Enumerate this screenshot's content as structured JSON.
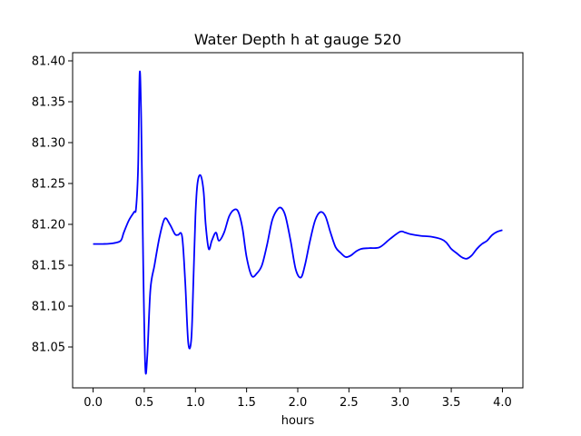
{
  "chart_data": {
    "type": "line",
    "title": "Water Depth h at gauge 520",
    "xlabel": "hours",
    "ylabel": "",
    "xlim": [
      -0.2,
      4.2
    ],
    "ylim": [
      81.0,
      81.41
    ],
    "xticks": [
      0.0,
      0.5,
      1.0,
      1.5,
      2.0,
      2.5,
      3.0,
      3.5,
      4.0
    ],
    "xtick_labels": [
      "0.0",
      "0.5",
      "1.0",
      "1.5",
      "2.0",
      "2.5",
      "3.0",
      "3.5",
      "4.0"
    ],
    "yticks": [
      81.05,
      81.1,
      81.15,
      81.2,
      81.25,
      81.3,
      81.35,
      81.4
    ],
    "ytick_labels": [
      "81.05",
      "81.10",
      "81.15",
      "81.20",
      "81.25",
      "81.30",
      "81.35",
      "81.40"
    ],
    "grid": false,
    "series": [
      {
        "color": "#0000ff",
        "x": [
          0.0,
          0.1,
          0.2,
          0.27,
          0.3,
          0.35,
          0.4,
          0.42,
          0.44,
          0.455,
          0.47,
          0.49,
          0.51,
          0.53,
          0.56,
          0.6,
          0.65,
          0.7,
          0.75,
          0.8,
          0.83,
          0.87,
          0.9,
          0.93,
          0.96,
          0.98,
          1.0,
          1.02,
          1.05,
          1.08,
          1.1,
          1.13,
          1.16,
          1.2,
          1.23,
          1.28,
          1.33,
          1.38,
          1.42,
          1.46,
          1.5,
          1.55,
          1.6,
          1.65,
          1.7,
          1.75,
          1.8,
          1.84,
          1.88,
          1.93,
          1.98,
          2.03,
          2.07,
          2.12,
          2.17,
          2.22,
          2.27,
          2.32,
          2.37,
          2.42,
          2.47,
          2.52,
          2.57,
          2.62,
          2.7,
          2.8,
          2.9,
          3.0,
          3.05,
          3.1,
          3.2,
          3.3,
          3.4,
          3.45,
          3.5,
          3.55,
          3.6,
          3.65,
          3.7,
          3.75,
          3.8,
          3.85,
          3.9,
          3.95,
          4.0
        ],
        "y": [
          81.176,
          81.176,
          81.177,
          81.18,
          81.19,
          81.205,
          81.215,
          81.22,
          81.27,
          81.385,
          81.33,
          81.15,
          81.025,
          81.04,
          81.12,
          81.15,
          81.185,
          81.207,
          81.2,
          81.188,
          81.187,
          81.185,
          81.13,
          81.055,
          81.06,
          81.13,
          81.21,
          81.25,
          81.26,
          81.24,
          81.2,
          81.17,
          81.18,
          81.19,
          81.18,
          81.19,
          81.21,
          81.218,
          81.215,
          81.195,
          81.16,
          81.137,
          81.14,
          81.15,
          81.175,
          81.205,
          81.218,
          81.22,
          81.21,
          81.18,
          81.145,
          81.135,
          81.15,
          81.18,
          81.205,
          81.215,
          81.21,
          81.19,
          81.172,
          81.165,
          81.16,
          81.162,
          81.167,
          81.17,
          81.171,
          81.172,
          81.182,
          81.191,
          81.19,
          81.188,
          81.186,
          81.185,
          81.182,
          81.178,
          81.17,
          81.165,
          81.16,
          81.158,
          81.162,
          81.17,
          81.176,
          81.18,
          81.187,
          81.191,
          81.193
        ]
      }
    ]
  }
}
